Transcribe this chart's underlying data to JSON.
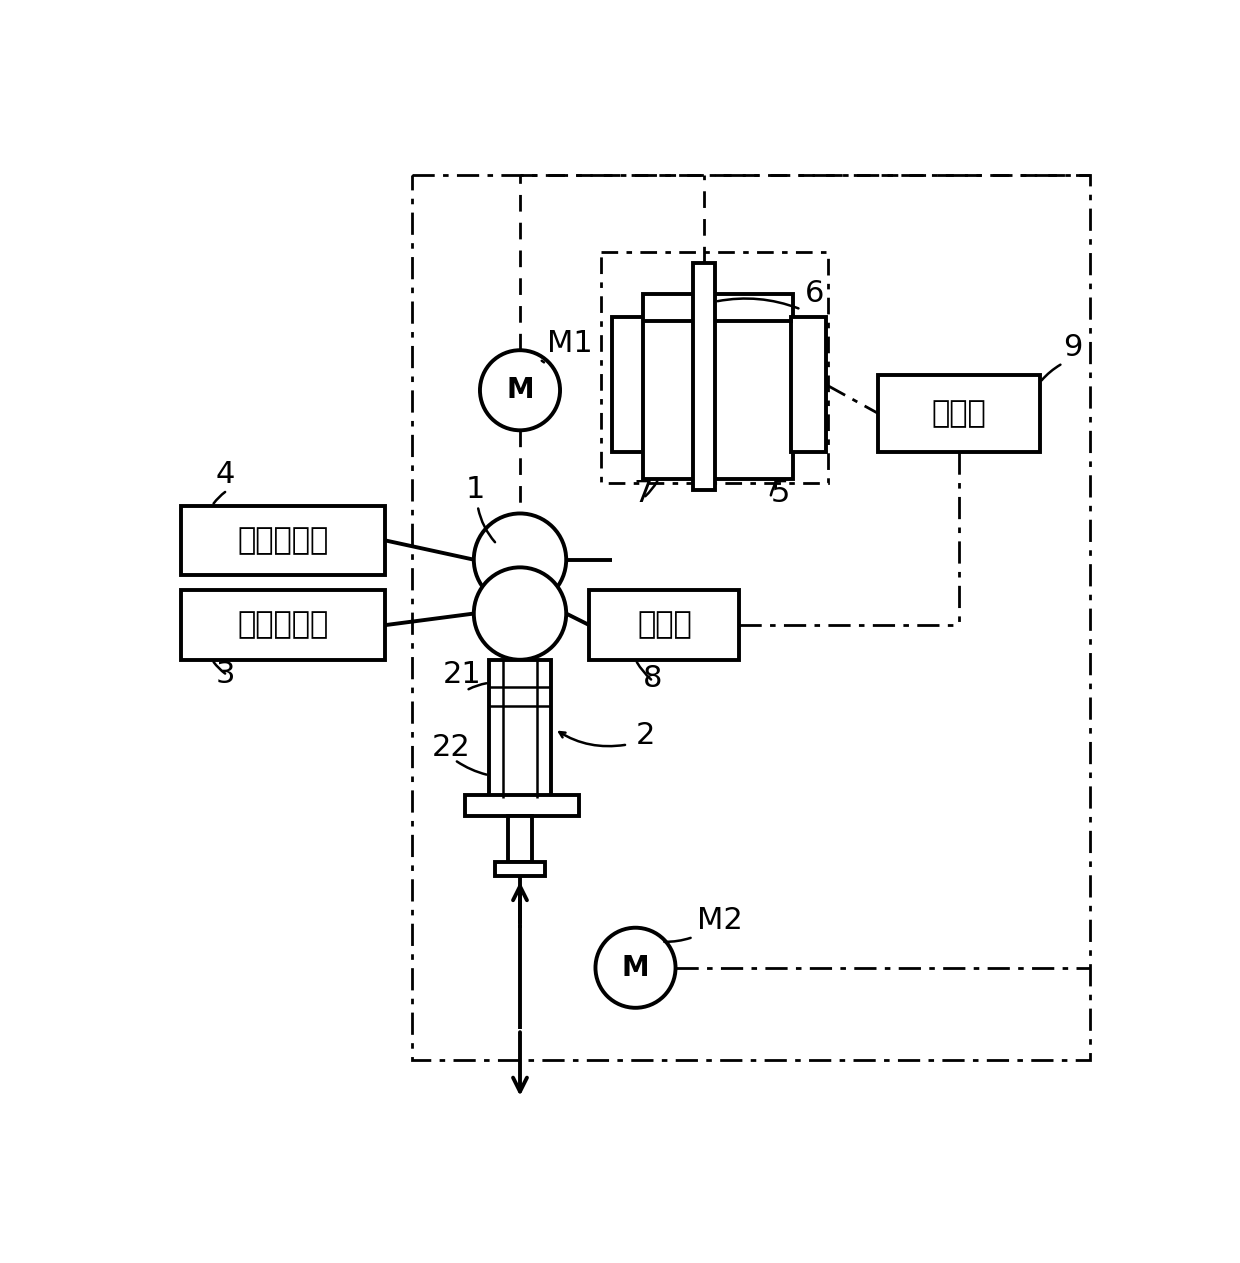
{
  "bg_color": "#ffffff",
  "lc": "#000000",
  "labels": {
    "M1": "M1",
    "M2": "M2",
    "1": "1",
    "2": "2",
    "3": "3",
    "4": "4",
    "5": "5",
    "6": "6",
    "7": "7",
    "8": "8",
    "9": "9",
    "21": "21",
    "22": "22"
  },
  "box_texts": {
    "shiyao": "试药供给部",
    "shuiyang": "水样供给部",
    "ceding": "测定部",
    "kongzhi": "控制部"
  },
  "motor_label": "M",
  "figsize": [
    12.4,
    12.63
  ],
  "dpi": 100
}
